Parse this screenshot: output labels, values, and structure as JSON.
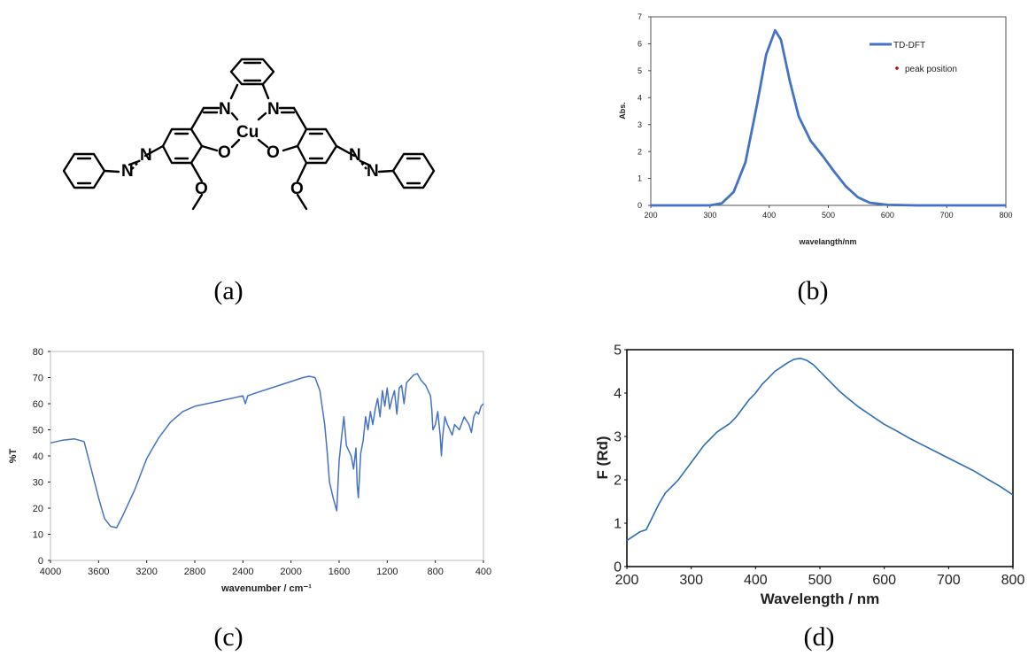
{
  "panels": {
    "a": {
      "label": "(a)",
      "atoms": {
        "n": "N",
        "cu": "Cu",
        "o": "O"
      }
    },
    "b": {
      "label": "(b)"
    },
    "c": {
      "label": "(c)"
    },
    "d": {
      "label": "(d)"
    }
  },
  "colors": {
    "curve": "#4472C4",
    "curve_d": "#2E6DB4",
    "peak_marker": "#C00000"
  },
  "chart_data": [
    {
      "id": "b",
      "type": "line",
      "xlabel": "wavelangth/nm",
      "ylabel": "Abs.",
      "xlim": [
        200,
        800
      ],
      "ylim": [
        0,
        7
      ],
      "xticks": [
        200,
        300,
        400,
        500,
        600,
        700,
        800
      ],
      "yticks": [
        0,
        1,
        2,
        3,
        4,
        5,
        6,
        7
      ],
      "legend": {
        "placement": "top-right",
        "entries": [
          "TD-DFT",
          "peak position"
        ]
      },
      "series": [
        {
          "name": "TD-DFT",
          "x": [
            200,
            300,
            320,
            340,
            360,
            380,
            395,
            410,
            420,
            435,
            450,
            470,
            490,
            510,
            530,
            550,
            570,
            600,
            650,
            800
          ],
          "y": [
            0,
            0,
            0.08,
            0.5,
            1.6,
            3.8,
            5.6,
            6.5,
            6.15,
            4.6,
            3.3,
            2.4,
            1.85,
            1.25,
            0.7,
            0.3,
            0.1,
            0.02,
            0,
            0
          ]
        }
      ]
    },
    {
      "id": "c",
      "type": "line",
      "xlabel": "wavenumber / cm⁻¹",
      "ylabel": "%T",
      "xlim": [
        4000,
        400
      ],
      "ylim": [
        0,
        80
      ],
      "xticks": [
        4000,
        3600,
        3200,
        2800,
        2400,
        2000,
        1600,
        1200,
        800,
        400
      ],
      "yticks": [
        0,
        10,
        20,
        30,
        40,
        50,
        60,
        70,
        80
      ],
      "series": [
        {
          "x": [
            4000,
            3900,
            3800,
            3720,
            3650,
            3600,
            3550,
            3500,
            3450,
            3400,
            3350,
            3300,
            3200,
            3100,
            3000,
            2900,
            2800,
            2600,
            2400,
            2380,
            2360,
            2300,
            2100,
            1900,
            1850,
            1800,
            1760,
            1720,
            1700,
            1680,
            1650,
            1620,
            1600,
            1580,
            1560,
            1540,
            1500,
            1480,
            1460,
            1450,
            1440,
            1420,
            1400,
            1380,
            1360,
            1340,
            1320,
            1300,
            1280,
            1260,
            1240,
            1220,
            1200,
            1180,
            1160,
            1140,
            1120,
            1100,
            1080,
            1060,
            1040,
            1020,
            1000,
            980,
            950,
            920,
            900,
            880,
            860,
            840,
            830,
            820,
            800,
            780,
            760,
            750,
            740,
            720,
            700,
            680,
            660,
            640,
            600,
            560,
            520,
            500,
            480,
            460,
            440,
            420,
            400
          ],
          "y": [
            45,
            46,
            46.5,
            45.5,
            33,
            24,
            16,
            13,
            12.5,
            17,
            22,
            27,
            39,
            47,
            53,
            57,
            59,
            61,
            63,
            60,
            63,
            64,
            67,
            70,
            70.5,
            70,
            65,
            52,
            42,
            30,
            24,
            19,
            38,
            47,
            55,
            44,
            40,
            35,
            43,
            29,
            24,
            41,
            46,
            55,
            50,
            57,
            52,
            58,
            62,
            55,
            65,
            59,
            66,
            58,
            62,
            65,
            56,
            66,
            67,
            60,
            68,
            69,
            70,
            71,
            71.5,
            69,
            68,
            67,
            65,
            63,
            58,
            50,
            52,
            57,
            48,
            40,
            47,
            55,
            52,
            50,
            48,
            52,
            50,
            55,
            52,
            49,
            55,
            57,
            56,
            59,
            60
          ]
        }
      ]
    },
    {
      "id": "d",
      "type": "line",
      "xlabel": "Wavelength / nm",
      "ylabel": "F (Rd)",
      "xlim": [
        200,
        800
      ],
      "ylim": [
        0,
        5
      ],
      "xticks": [
        200,
        300,
        400,
        500,
        600,
        700,
        800
      ],
      "yticks": [
        0,
        1,
        2,
        3,
        4,
        5
      ],
      "series": [
        {
          "x": [
            200,
            210,
            220,
            230,
            240,
            250,
            260,
            270,
            280,
            290,
            300,
            310,
            320,
            330,
            340,
            350,
            360,
            370,
            380,
            390,
            400,
            410,
            420,
            430,
            440,
            450,
            460,
            470,
            480,
            490,
            500,
            510,
            520,
            530,
            540,
            550,
            560,
            570,
            580,
            590,
            600,
            620,
            640,
            660,
            680,
            700,
            720,
            740,
            760,
            780,
            800
          ],
          "y": [
            0.6,
            0.7,
            0.8,
            0.85,
            1.15,
            1.45,
            1.7,
            1.85,
            2.0,
            2.2,
            2.4,
            2.6,
            2.8,
            2.95,
            3.1,
            3.2,
            3.3,
            3.45,
            3.65,
            3.85,
            4.0,
            4.2,
            4.35,
            4.5,
            4.6,
            4.7,
            4.78,
            4.8,
            4.75,
            4.65,
            4.5,
            4.35,
            4.2,
            4.05,
            3.92,
            3.8,
            3.68,
            3.58,
            3.48,
            3.38,
            3.28,
            3.12,
            2.95,
            2.8,
            2.65,
            2.5,
            2.35,
            2.2,
            2.02,
            1.85,
            1.65
          ]
        }
      ]
    }
  ]
}
